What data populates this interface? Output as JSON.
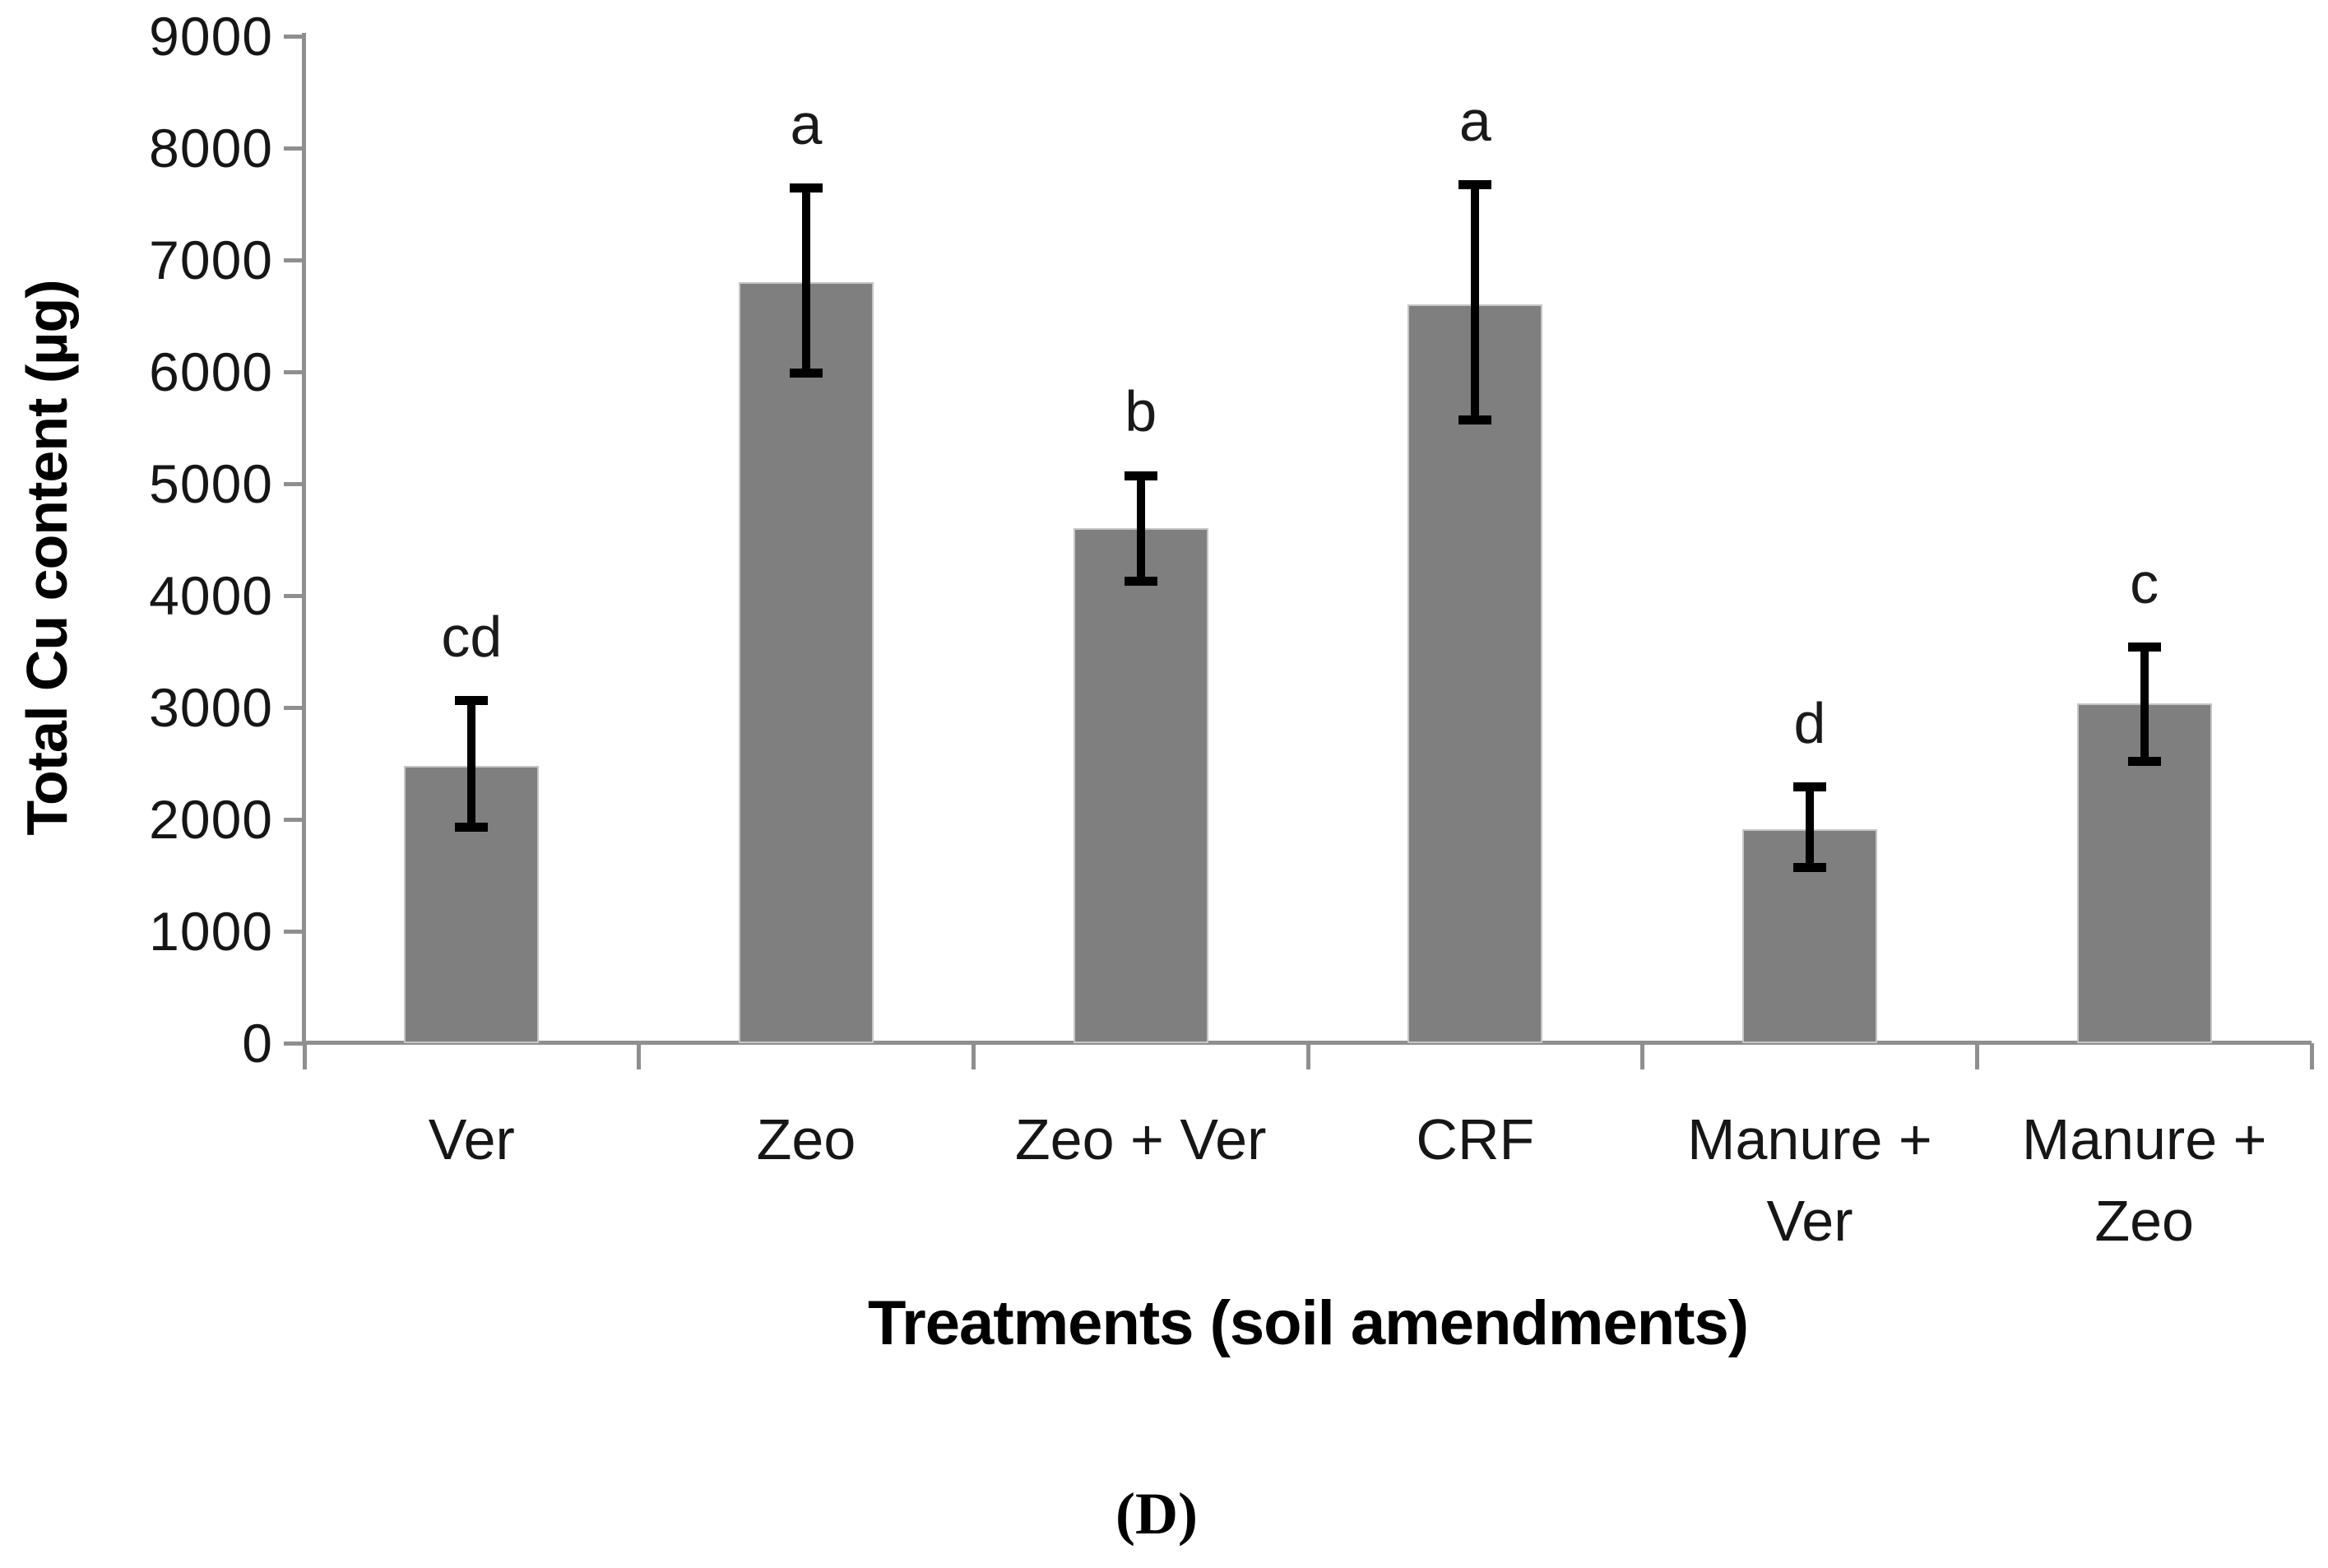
{
  "figure": {
    "caption": "(D)",
    "background": "#ffffff"
  },
  "chart_data": {
    "type": "bar",
    "title": "",
    "xlabel": "Treatments (soil amendments)",
    "ylabel": "Total Cu content (µg)",
    "categories": [
      "Ver",
      "Zeo",
      "Zeo + Ver",
      "CRF",
      "Manure +\nVer",
      "Manure +\nZeo"
    ],
    "values": [
      2480,
      6800,
      4600,
      6600,
      1910,
      3040
    ],
    "error_high": [
      3060,
      7640,
      5070,
      7670,
      2290,
      3540
    ],
    "error_low": [
      1930,
      5990,
      4130,
      5570,
      1570,
      2520
    ],
    "sig_letters": [
      "cd",
      "a",
      "b",
      "a",
      "d",
      "c"
    ],
    "ylim": [
      0,
      9000
    ],
    "ytick_step": 1000,
    "yticks": [
      0,
      1000,
      2000,
      3000,
      4000,
      5000,
      6000,
      7000,
      8000,
      9000
    ],
    "grid": false,
    "legend": null,
    "bar_color": "#7f7f7f",
    "bar_border_color": "#c6c6c6",
    "error_color": "#000000",
    "axis_color": "#8f8f8f",
    "text_color": "#161616"
  }
}
